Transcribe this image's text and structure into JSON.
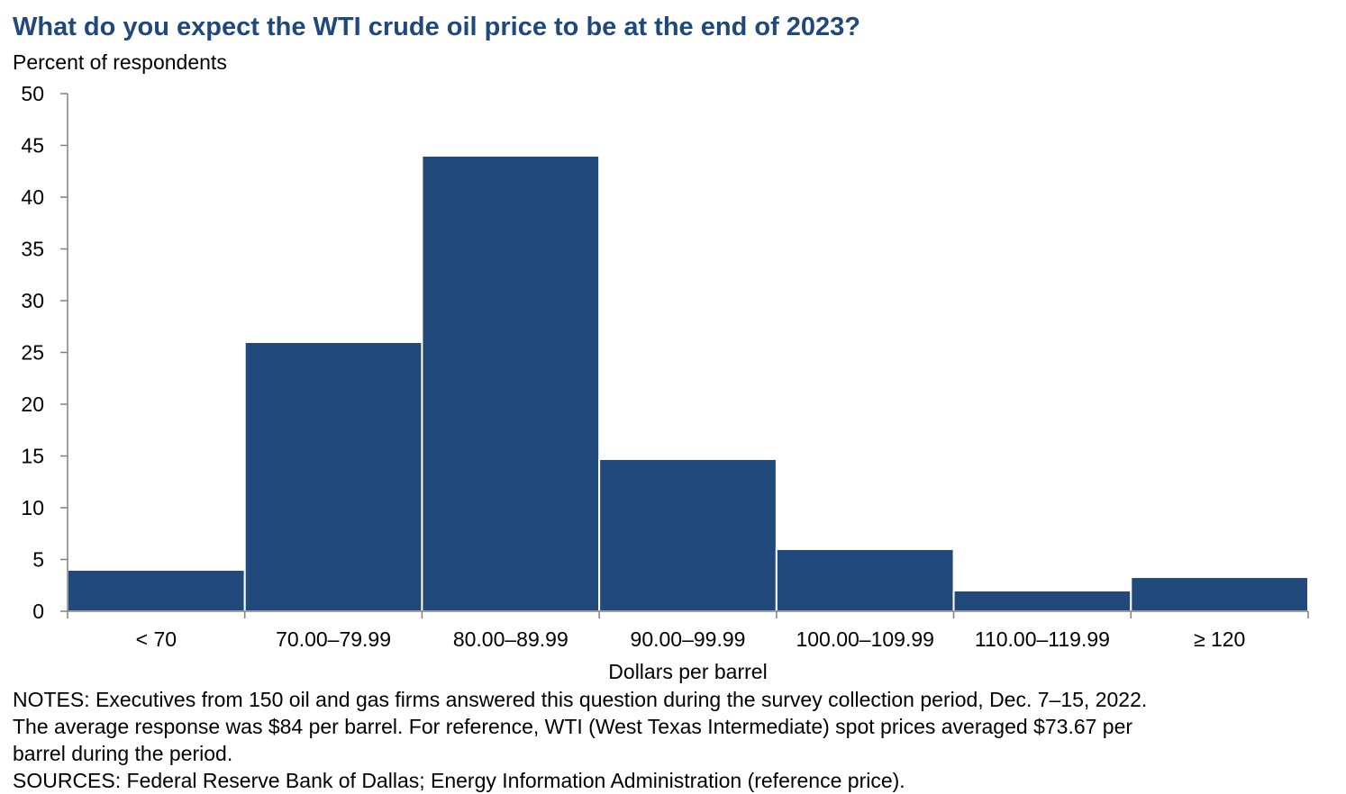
{
  "title": "What do you expect the WTI crude oil price to be at the end of 2023?",
  "subtitle": "Percent of respondents",
  "notes": {
    "line1": "NOTES: Executives from 150 oil and gas firms answered this question during the survey collection period, Dec. 7–15, 2022.",
    "line2": "The average response was $84 per barrel. For reference, WTI (West Texas Intermediate) spot prices averaged $73.67 per",
    "line3": "barrel during the period.",
    "line4": "SOURCES: Federal Reserve Bank of Dallas; Energy Information Administration (reference price)."
  },
  "colors": {
    "bar": "#21497c",
    "title": "#1f497d",
    "axis": "#808080"
  },
  "chart_data": {
    "type": "bar",
    "title": "What do you expect the WTI crude oil price to be at the end of 2023?",
    "ylabel": "Percent of respondents",
    "xlabel": "Dollars per barrel",
    "categories": [
      "< 70",
      "70.00–79.99",
      "80.00–89.99",
      "90.00–99.99",
      "100.00–109.99",
      "110.00–119.99",
      "≥ 120"
    ],
    "values": [
      4.0,
      26.0,
      44.0,
      14.7,
      6.0,
      2.0,
      3.3
    ],
    "ylim": [
      0,
      50
    ],
    "yticks": [
      0,
      5,
      10,
      15,
      20,
      25,
      30,
      35,
      40,
      45,
      50
    ],
    "grid": false,
    "legend": "none"
  }
}
